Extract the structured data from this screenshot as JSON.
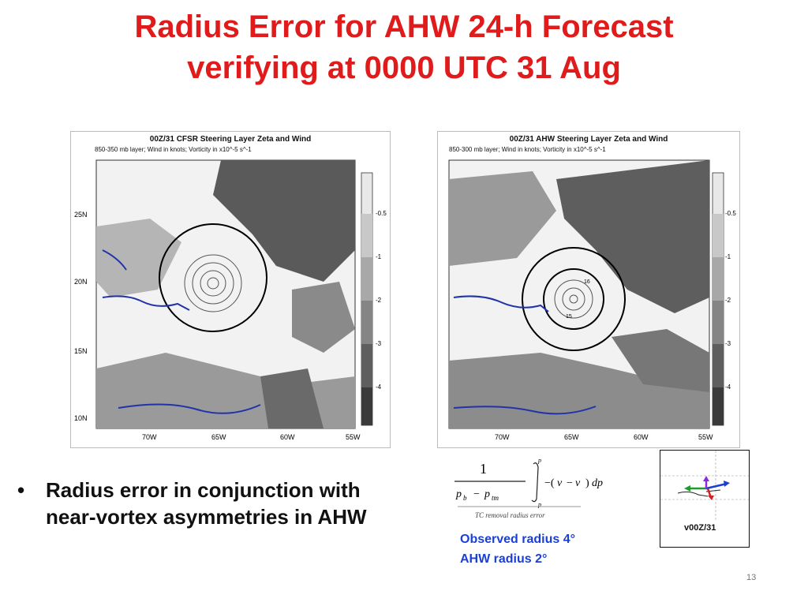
{
  "slide": {
    "title_line1": "Radius Error for AHW 24-h Forecast",
    "title_line2": "verifying at 0000 UTC 31 Aug",
    "page_number": "13"
  },
  "left_panel": {
    "title": "00Z/31 CFSR Steering Layer Zeta and Wind",
    "subtitle": "850-350 mb layer; Wind in knots; Vorticity in x10^-5 s^-1",
    "lat_labels": [
      "25N",
      "20N",
      "15N",
      "10N"
    ],
    "lon_labels": [
      "70W",
      "65W",
      "60W",
      "55W"
    ],
    "colorbar_labels": [
      "-0.5",
      "-1",
      "-2",
      "-3",
      "-4"
    ]
  },
  "right_panel": {
    "title": "00Z/31 AHW Steering Layer Zeta and Wind",
    "subtitle": "850-300 mb layer; Wind in knots; Vorticity in x10^-5 s^-1",
    "lon_labels": [
      "70W",
      "65W",
      "60W",
      "55W"
    ],
    "colorbar_labels": [
      "-0.5",
      "-1",
      "-2",
      "-3",
      "-4"
    ],
    "contour_labels": [
      "16",
      "15"
    ]
  },
  "bullet": {
    "marker": "•",
    "text": "Radius error in conjunction with near-vortex asymmetries in AHW"
  },
  "formula": {
    "caption": "TC removal radius error"
  },
  "notes": {
    "observed": "Observed radius 4°",
    "ahw": "AHW radius 2°"
  },
  "inset": {
    "label": "v00Z/31"
  },
  "colors": {
    "title": "#e01b1b",
    "note": "#1a3fd6",
    "arrow_green": "#1f9d2a",
    "arrow_blue": "#1a3fd6",
    "arrow_red": "#d42020",
    "arrow_purple": "#8a2be2"
  }
}
